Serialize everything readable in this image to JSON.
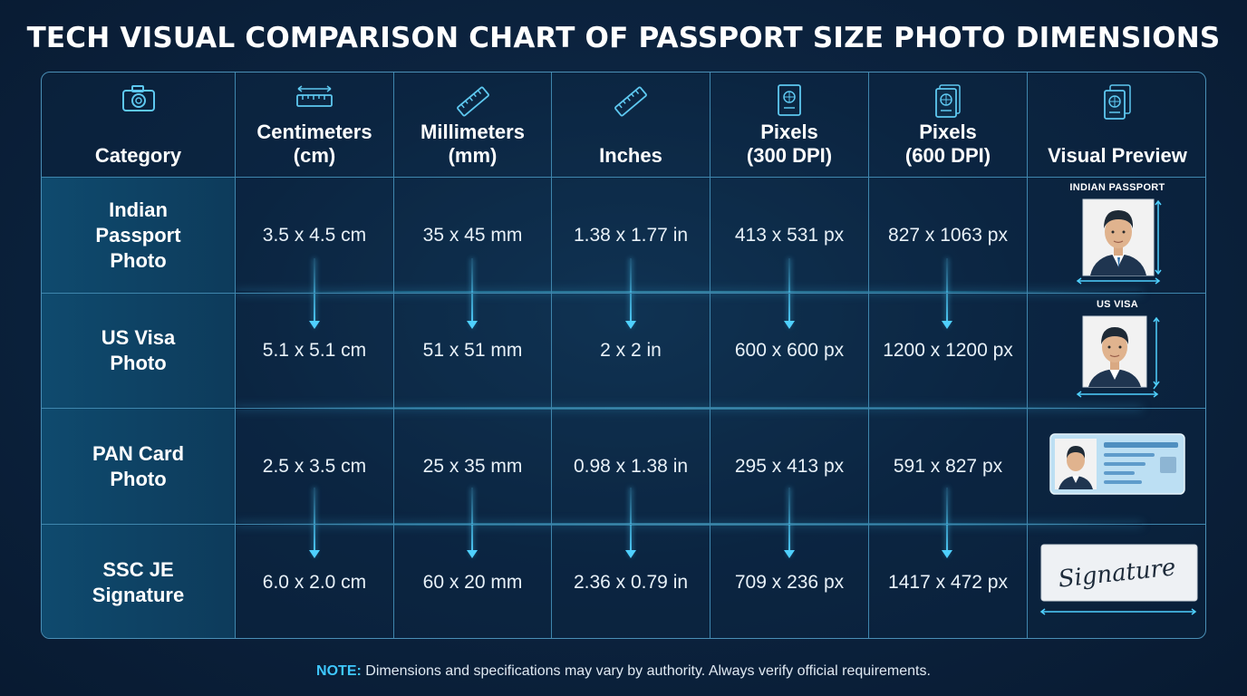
{
  "title": "TECH VISUAL COMPARISON CHART OF PASSPORT SIZE PHOTO DIMENSIONS",
  "headers": [
    {
      "label": "Category",
      "icon": "camera-icon"
    },
    {
      "label": "Centimeters\n(cm)",
      "icon": "ruler-horizontal-icon"
    },
    {
      "label": "Millimeters\n(mm)",
      "icon": "ruler-diagonal-icon"
    },
    {
      "label": "Inches",
      "icon": "ruler-diagonal-icon"
    },
    {
      "label": "Pixels\n(300 DPI)",
      "icon": "passport-icon"
    },
    {
      "label": "Pixels\n(600 DPI)",
      "icon": "passport-icon"
    },
    {
      "label": "Visual Preview",
      "icon": "passports-stack-icon"
    }
  ],
  "rows": [
    {
      "category": "Indian\nPassport\nPhoto",
      "cm": "3.5 x 4.5 cm",
      "mm": "35 x 45 mm",
      "in": "1.38 x 1.77 in",
      "px300": "413 x 531 px",
      "px600": "827 x 1063 px",
      "preview_label": "INDIAN PASSPORT",
      "preview": "portrait-photo-icon"
    },
    {
      "category": "US Visa\nPhoto",
      "cm": "5.1 x 5.1 cm",
      "mm": "51 x 51 mm",
      "in": "2 x 2 in",
      "px300": "600 x 600 px",
      "px600": "1200 x 1200 px",
      "preview_label": "US VISA",
      "preview": "square-photo-icon"
    },
    {
      "category": "PAN Card\nPhoto",
      "cm": "2.5 x 3.5 cm",
      "mm": "25 x 35 mm",
      "in": "0.98 x 1.38 in",
      "px300": "295 x 413 px",
      "px600": "591 x 827 px",
      "preview_label": "",
      "preview": "id-card-icon"
    },
    {
      "category": "SSC JE\nSignature",
      "cm": "6.0 x 2.0 cm",
      "mm": "60 x 20 mm",
      "in": "2.36 x 0.79 in",
      "px300": "709 x 236 px",
      "px600": "1417 x 472 px",
      "preview_label": "",
      "preview": "signature-icon",
      "signature_text": "Signature"
    }
  ],
  "note": {
    "prefix": "NOTE:",
    "text": " Dimensions and specifications may vary by authority. Always verify official requirements."
  },
  "colors": {
    "accent": "#3fc8ff",
    "grid": "#3f86ad",
    "background": "#0c2440"
  }
}
